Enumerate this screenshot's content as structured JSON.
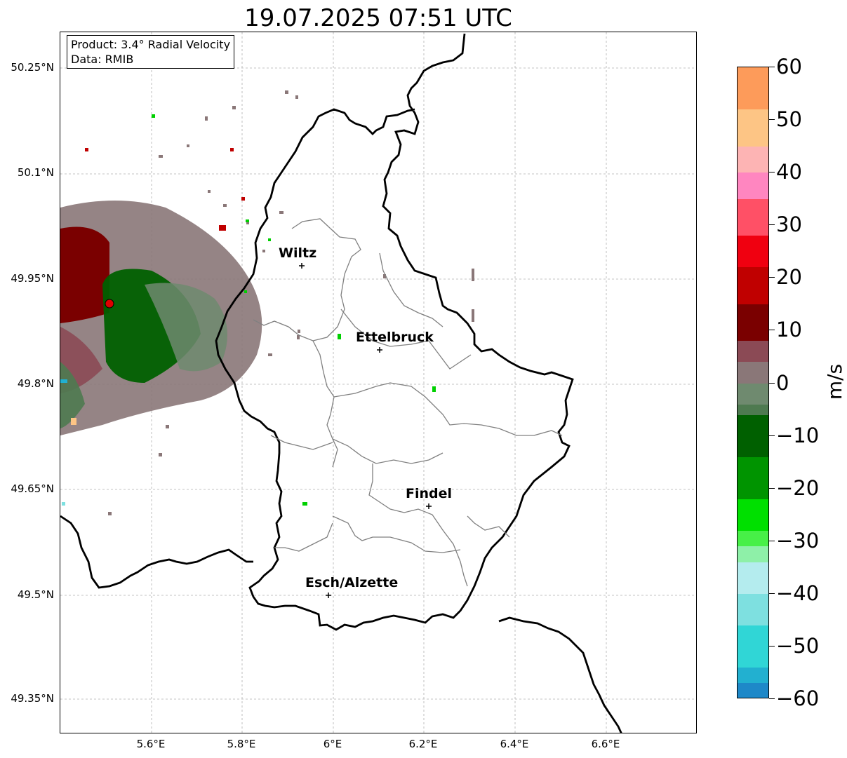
{
  "title": "19.07.2025 07:51 UTC",
  "info": {
    "product": "Product: 3.4° Radial Velocity",
    "data": "Data: RMIB"
  },
  "latitude_labels": [
    "50.25°N",
    "50.1°N",
    "49.95°N",
    "49.8°N",
    "49.65°N",
    "49.5°N",
    "49.35°N"
  ],
  "longitude_labels": [
    "5.6°E",
    "5.8°E",
    "6°E",
    "6.2°E",
    "6.4°E",
    "6.6°E"
  ],
  "cities": [
    {
      "name": "Wiltz"
    },
    {
      "name": "Ettelbruck"
    },
    {
      "name": "Findel"
    },
    {
      "name": "Esch/Alzette"
    }
  ],
  "colorbar": {
    "unit": "m/s",
    "min": -60,
    "max": 60,
    "ticks": [
      "60",
      "50",
      "40",
      "30",
      "20",
      "10",
      "0",
      "−10",
      "−20",
      "−30",
      "−40",
      "−50",
      "−60"
    ],
    "colors": [
      {
        "from": 52,
        "to": 60,
        "color": "#fd9b5a"
      },
      {
        "from": 45,
        "to": 52,
        "color": "#fdc585"
      },
      {
        "from": 40,
        "to": 45,
        "color": "#fdb4b4"
      },
      {
        "from": 35,
        "to": 40,
        "color": "#ff86c0"
      },
      {
        "from": 28,
        "to": 35,
        "color": "#ff5066"
      },
      {
        "from": 22,
        "to": 28,
        "color": "#f00010"
      },
      {
        "from": 15,
        "to": 22,
        "color": "#c00000"
      },
      {
        "from": 8,
        "to": 15,
        "color": "#7a0000"
      },
      {
        "from": 4,
        "to": 8,
        "color": "#8b4a55"
      },
      {
        "from": 0,
        "to": 4,
        "color": "#8a7778"
      },
      {
        "from": -4,
        "to": 0,
        "color": "#6f8a6f"
      },
      {
        "from": -6,
        "to": -4,
        "color": "#4e7a50"
      },
      {
        "from": -14,
        "to": -6,
        "color": "#006000"
      },
      {
        "from": -22,
        "to": -14,
        "color": "#009400"
      },
      {
        "from": -28,
        "to": -22,
        "color": "#00e000"
      },
      {
        "from": -31,
        "to": -28,
        "color": "#47f047"
      },
      {
        "from": -34,
        "to": -31,
        "color": "#8ef0a8"
      },
      {
        "from": -40,
        "to": -34,
        "color": "#b4ecee"
      },
      {
        "from": -46,
        "to": -40,
        "color": "#7ee0e0"
      },
      {
        "from": -54,
        "to": -46,
        "color": "#30d6d6"
      },
      {
        "from": -57,
        "to": -54,
        "color": "#22b0d0"
      },
      {
        "from": -60,
        "to": -57,
        "color": "#1e88c8"
      }
    ]
  },
  "colors": {
    "border_country": "#000000",
    "border_canton": "#808080",
    "grid": "#b0b0b0",
    "radar_marker": "#e00000"
  }
}
